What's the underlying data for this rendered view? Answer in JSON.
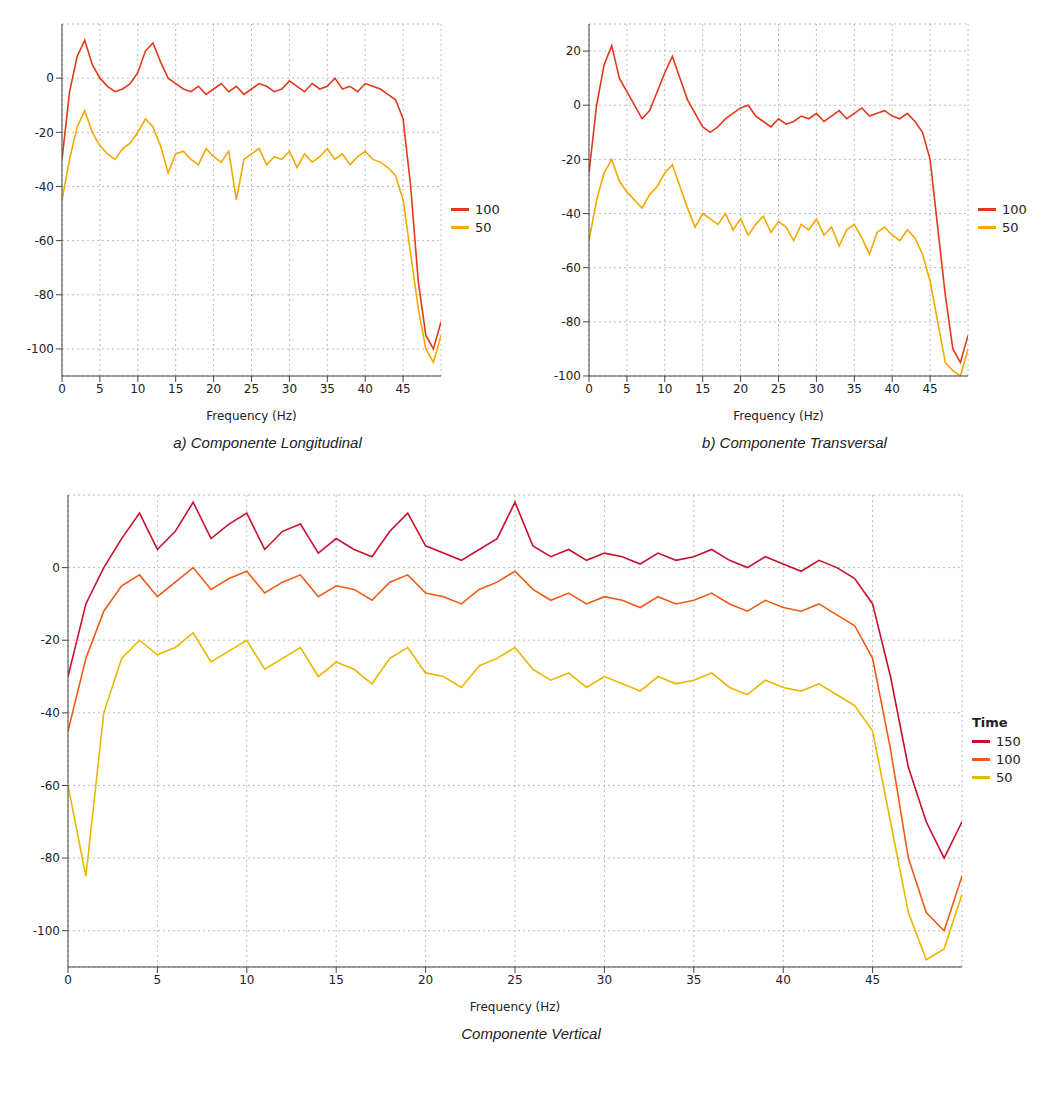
{
  "chart_data": [
    {
      "type": "line",
      "caption": "a) Componente Longitudinal",
      "x_label": "Frequency (Hz)",
      "grid": true,
      "legend": "right",
      "x": [
        0,
        1,
        2,
        3,
        4,
        5,
        6,
        7,
        8,
        9,
        10,
        11,
        12,
        13,
        14,
        15,
        16,
        17,
        18,
        19,
        20,
        21,
        22,
        23,
        24,
        25,
        26,
        27,
        28,
        29,
        30,
        31,
        32,
        33,
        34,
        35,
        36,
        37,
        38,
        39,
        40,
        41,
        42,
        43,
        44,
        45,
        46,
        47,
        48,
        49,
        50
      ],
      "xlim": [
        0,
        50
      ],
      "xticks": [
        0,
        5,
        10,
        15,
        20,
        25,
        30,
        35,
        40,
        45
      ],
      "ylim": [
        -110,
        20
      ],
      "yticks": [
        -100,
        -80,
        -60,
        -40,
        -20,
        0
      ],
      "series": [
        {
          "name": "100",
          "color": "#e03a1a",
          "values": [
            -30,
            -5,
            8,
            14,
            5,
            0,
            -3,
            -5,
            -4,
            -2,
            2,
            10,
            13,
            6,
            0,
            -2,
            -4,
            -5,
            -3,
            -6,
            -4,
            -2,
            -5,
            -3,
            -6,
            -4,
            -2,
            -3,
            -5,
            -4,
            -1,
            -3,
            -5,
            -2,
            -4,
            -3,
            0,
            -4,
            -3,
            -5,
            -2,
            -3,
            -4,
            -6,
            -8,
            -15,
            -40,
            -75,
            -95,
            -100,
            -90
          ]
        },
        {
          "name": "50",
          "color": "#f2a900",
          "values": [
            -45,
            -30,
            -18,
            -12,
            -20,
            -25,
            -28,
            -30,
            -26,
            -24,
            -20,
            -15,
            -18,
            -25,
            -35,
            -28,
            -27,
            -30,
            -32,
            -26,
            -29,
            -31,
            -27,
            -45,
            -30,
            -28,
            -26,
            -32,
            -29,
            -30,
            -27,
            -33,
            -28,
            -31,
            -29,
            -26,
            -30,
            -28,
            -32,
            -29,
            -27,
            -30,
            -31,
            -33,
            -36,
            -45,
            -65,
            -85,
            -100,
            -105,
            -95
          ]
        }
      ]
    },
    {
      "type": "line",
      "caption": "b) Componente Transversal",
      "x_label": "Frequency (Hz)",
      "grid": true,
      "legend": "right",
      "x": [
        0,
        1,
        2,
        3,
        4,
        5,
        6,
        7,
        8,
        9,
        10,
        11,
        12,
        13,
        14,
        15,
        16,
        17,
        18,
        19,
        20,
        21,
        22,
        23,
        24,
        25,
        26,
        27,
        28,
        29,
        30,
        31,
        32,
        33,
        34,
        35,
        36,
        37,
        38,
        39,
        40,
        41,
        42,
        43,
        44,
        45,
        46,
        47,
        48,
        49,
        50
      ],
      "xlim": [
        0,
        50
      ],
      "xticks": [
        0,
        5,
        10,
        15,
        20,
        25,
        30,
        35,
        40,
        45
      ],
      "ylim": [
        -100,
        30
      ],
      "yticks": [
        -100,
        -80,
        -60,
        -40,
        -20,
        0,
        20
      ],
      "series": [
        {
          "name": "100",
          "color": "#e03a1a",
          "values": [
            -25,
            0,
            15,
            22,
            10,
            5,
            0,
            -5,
            -2,
            5,
            12,
            18,
            10,
            2,
            -3,
            -8,
            -10,
            -8,
            -5,
            -3,
            -1,
            0,
            -4,
            -6,
            -8,
            -5,
            -7,
            -6,
            -4,
            -5,
            -3,
            -6,
            -4,
            -2,
            -5,
            -3,
            -1,
            -4,
            -3,
            -2,
            -4,
            -5,
            -3,
            -6,
            -10,
            -20,
            -45,
            -70,
            -90,
            -95,
            -85
          ]
        },
        {
          "name": "50",
          "color": "#f2a900",
          "values": [
            -50,
            -35,
            -25,
            -20,
            -28,
            -32,
            -35,
            -38,
            -33,
            -30,
            -25,
            -22,
            -30,
            -38,
            -45,
            -40,
            -42,
            -44,
            -40,
            -46,
            -42,
            -48,
            -44,
            -41,
            -47,
            -43,
            -45,
            -50,
            -44,
            -46,
            -42,
            -48,
            -45,
            -52,
            -46,
            -44,
            -49,
            -55,
            -47,
            -45,
            -48,
            -50,
            -46,
            -49,
            -55,
            -65,
            -80,
            -95,
            -98,
            -100,
            -90
          ]
        }
      ]
    },
    {
      "type": "line",
      "caption": "Componente Vertical",
      "x_label": "Frequency (Hz)",
      "grid": true,
      "legend": "right",
      "legend_title": "Time",
      "x": [
        0,
        1,
        2,
        3,
        4,
        5,
        6,
        7,
        8,
        9,
        10,
        11,
        12,
        13,
        14,
        15,
        16,
        17,
        18,
        19,
        20,
        21,
        22,
        23,
        24,
        25,
        26,
        27,
        28,
        29,
        30,
        31,
        32,
        33,
        34,
        35,
        36,
        37,
        38,
        39,
        40,
        41,
        42,
        43,
        44,
        45,
        46,
        47,
        48,
        49,
        50
      ],
      "xlim": [
        0,
        50
      ],
      "xticks": [
        0,
        5,
        10,
        15,
        20,
        25,
        30,
        35,
        40,
        45
      ],
      "ylim": [
        -110,
        20
      ],
      "yticks": [
        -100,
        -80,
        -60,
        -40,
        -20,
        0
      ],
      "series": [
        {
          "name": "150",
          "color": "#c8102e",
          "values": [
            -30,
            -10,
            0,
            8,
            15,
            5,
            10,
            18,
            8,
            12,
            15,
            5,
            10,
            12,
            4,
            8,
            5,
            3,
            10,
            15,
            6,
            4,
            2,
            5,
            8,
            18,
            6,
            3,
            5,
            2,
            4,
            3,
            1,
            4,
            2,
            3,
            5,
            2,
            0,
            3,
            1,
            -1,
            2,
            0,
            -3,
            -10,
            -30,
            -55,
            -70,
            -80,
            -70
          ]
        },
        {
          "name": "100",
          "color": "#f05a14",
          "values": [
            -45,
            -25,
            -12,
            -5,
            -2,
            -8,
            -4,
            0,
            -6,
            -3,
            -1,
            -7,
            -4,
            -2,
            -8,
            -5,
            -6,
            -9,
            -4,
            -2,
            -7,
            -8,
            -10,
            -6,
            -4,
            -1,
            -6,
            -9,
            -7,
            -10,
            -8,
            -9,
            -11,
            -8,
            -10,
            -9,
            -7,
            -10,
            -12,
            -9,
            -11,
            -12,
            -10,
            -13,
            -16,
            -25,
            -50,
            -80,
            -95,
            -100,
            -85
          ]
        },
        {
          "name": "50",
          "color": "#e8b800",
          "values": [
            -60,
            -85,
            -40,
            -25,
            -20,
            -24,
            -22,
            -18,
            -26,
            -23,
            -20,
            -28,
            -25,
            -22,
            -30,
            -26,
            -28,
            -32,
            -25,
            -22,
            -29,
            -30,
            -33,
            -27,
            -25,
            -22,
            -28,
            -31,
            -29,
            -33,
            -30,
            -32,
            -34,
            -30,
            -32,
            -31,
            -29,
            -33,
            -35,
            -31,
            -33,
            -34,
            -32,
            -35,
            -38,
            -45,
            -70,
            -95,
            -108,
            -105,
            -90
          ]
        }
      ]
    }
  ]
}
